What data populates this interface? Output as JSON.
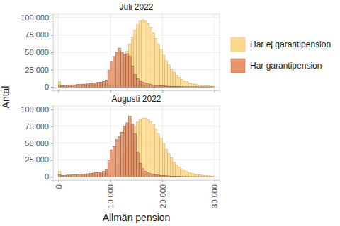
{
  "chart_data": [
    {
      "type": "histogram",
      "title": "Juli 2022",
      "y_label": "Antal",
      "legend": "right",
      "grid": true,
      "tick_labels": "y",
      "bins": [
        0,
        500,
        1000,
        1500,
        2000,
        2500,
        3000,
        3500,
        4000,
        4500,
        5000,
        5500,
        6000,
        6500,
        7000,
        7500,
        8000,
        8500,
        9000,
        9500,
        10000,
        10500,
        11000,
        11500,
        12000,
        12500,
        13000,
        13500,
        14000,
        14500,
        15000,
        15500,
        16000,
        16500,
        17000,
        17500,
        18000,
        18500,
        19000,
        19500,
        20000,
        20500,
        21000,
        21500,
        22000,
        22500,
        23000,
        23500,
        24000,
        24500,
        25000,
        25500,
        26000,
        26500,
        27000,
        27500,
        28000,
        28500,
        29000,
        29500,
        30000
      ],
      "xlim": [
        -1000,
        31000
      ],
      "xticks": [
        0,
        {
          "value": 10000,
          "label": "10 000"
        },
        {
          "value": 20000,
          "label": "20 000"
        },
        {
          "value": 30000,
          "label": "30 000"
        }
      ],
      "ylim": [
        -5000,
        105000
      ],
      "yticks": [
        0,
        {
          "value": 25000,
          "label": "25 000"
        },
        {
          "value": 50000,
          "label": "50 000"
        },
        {
          "value": 75000,
          "label": "75 000"
        },
        {
          "value": 100000,
          "label": "100 000"
        }
      ],
      "series": [
        {
          "name": "Har ej garantipension",
          "color": "#fdd98c",
          "values": [
            8000,
            1000,
            1000,
            1000,
            1500,
            1500,
            1500,
            2000,
            2000,
            2000,
            2500,
            2500,
            3000,
            3000,
            3500,
            3500,
            4000,
            4500,
            5000,
            6000,
            8000,
            12000,
            18000,
            25000,
            33000,
            42000,
            52000,
            62000,
            72000,
            82000,
            90000,
            95000,
            97000,
            95000,
            91000,
            86000,
            78000,
            70000,
            62000,
            54000,
            46000,
            38000,
            32000,
            26000,
            21000,
            17000,
            14000,
            11000,
            9000,
            7500,
            6000,
            5000,
            4000,
            3300,
            2700,
            2200,
            1800,
            1500,
            1200,
            1000
          ]
        },
        {
          "name": "Har garantipension",
          "color": "#e8956b",
          "values": [
            3000,
            2000,
            2000,
            2500,
            2500,
            3000,
            3000,
            3500,
            3500,
            4000,
            4000,
            4500,
            5000,
            5500,
            6000,
            6500,
            7000,
            8000,
            10000,
            24000,
            36000,
            44000,
            50000,
            56000,
            50000,
            47000,
            48000,
            44000,
            30000,
            18000,
            12000,
            9000,
            7000,
            5500,
            4500,
            3500,
            3000,
            2500,
            2000,
            1700,
            1400,
            1200,
            1000,
            800,
            700,
            600,
            500,
            400,
            300,
            250,
            200,
            200,
            150,
            150,
            100,
            100,
            100,
            100,
            100,
            100
          ]
        }
      ]
    },
    {
      "type": "histogram",
      "title": "Augusti 2022",
      "x_label": "Allmän pension",
      "grid": true,
      "bins": [
        0,
        500,
        1000,
        1500,
        2000,
        2500,
        3000,
        3500,
        4000,
        4500,
        5000,
        5500,
        6000,
        6500,
        7000,
        7500,
        8000,
        8500,
        9000,
        9500,
        10000,
        10500,
        11000,
        11500,
        12000,
        12500,
        13000,
        13500,
        14000,
        14500,
        15000,
        15500,
        16000,
        16500,
        17000,
        17500,
        18000,
        18500,
        19000,
        19500,
        20000,
        20500,
        21000,
        21500,
        22000,
        22500,
        23000,
        23500,
        24000,
        24500,
        25000,
        25500,
        26000,
        26500,
        27000,
        27500,
        28000,
        28500,
        29000,
        29500,
        30000
      ],
      "xlim": [
        -1000,
        31000
      ],
      "xticks": [
        0,
        {
          "value": 10000,
          "label": "10 000"
        },
        {
          "value": 20000,
          "label": "20 000"
        },
        {
          "value": 30000,
          "label": "30 000"
        }
      ],
      "ylim": [
        -5000,
        105000
      ],
      "yticks": [
        0,
        {
          "value": 25000,
          "label": "25 000"
        },
        {
          "value": 50000,
          "label": "50 000"
        },
        {
          "value": 75000,
          "label": "75 000"
        },
        {
          "value": 100000,
          "label": "100 000"
        }
      ],
      "series": [
        {
          "color": "#fdd98c",
          "values": [
            8000,
            1000,
            1000,
            1000,
            1500,
            1500,
            1500,
            2000,
            2000,
            2000,
            2500,
            2500,
            3000,
            3000,
            3500,
            3500,
            4000,
            4500,
            5000,
            6000,
            7000,
            10000,
            14000,
            20000,
            27000,
            35000,
            44000,
            54000,
            64000,
            74000,
            81000,
            85000,
            87000,
            87000,
            85000,
            82000,
            77000,
            71000,
            64000,
            57000,
            49000,
            41000,
            34000,
            28000,
            22000,
            18000,
            14500,
            11500,
            9500,
            7800,
            6200,
            5100,
            4100,
            3400,
            2800,
            2300,
            1900,
            1500,
            1200,
            1000
          ]
        },
        {
          "color": "#e8956b",
          "values": [
            3000,
            2000,
            2000,
            2500,
            2500,
            3000,
            3000,
            3500,
            3500,
            4000,
            4000,
            4500,
            5000,
            5500,
            6000,
            6500,
            7000,
            8000,
            10000,
            25000,
            40000,
            45000,
            55000,
            60000,
            66000,
            75000,
            80000,
            90000,
            78000,
            64000,
            36000,
            20000,
            12000,
            8000,
            6000,
            4500,
            3500,
            3000,
            2500,
            2000,
            1700,
            1400,
            1200,
            1000,
            800,
            700,
            600,
            500,
            400,
            300,
            250,
            200,
            200,
            150,
            150,
            100,
            100,
            100,
            100,
            100
          ]
        }
      ]
    }
  ]
}
